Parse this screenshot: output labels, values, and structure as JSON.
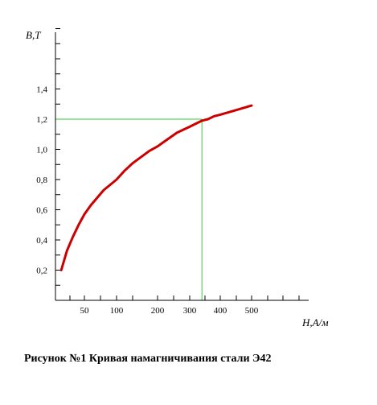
{
  "chart_data": {
    "type": "line",
    "title": "",
    "caption": "Рисунок №1 Кривая намагничивания стали Э42",
    "ylabel": "B,T",
    "xlabel": "H,A/м",
    "y_ticks": [
      "0,2",
      "0,4",
      "0,6",
      "0,8",
      "1,0",
      "1,2",
      "1,4"
    ],
    "x_ticks": [
      "50",
      "100",
      "200",
      "300",
      "400",
      "500"
    ],
    "grid": false,
    "colors": {
      "curve": "#cc0000",
      "guide": "#33cc33",
      "axis": "#000000"
    },
    "series": [
      {
        "x": [
          10,
          20,
          30,
          40,
          50,
          60,
          70,
          80,
          100,
          120,
          140,
          160,
          180,
          200,
          220,
          240,
          260,
          280,
          300,
          320,
          340,
          360,
          380,
          400,
          450,
          500
        ],
        "y": [
          0.2,
          0.33,
          0.42,
          0.5,
          0.57,
          0.63,
          0.68,
          0.73,
          0.8,
          0.86,
          0.91,
          0.95,
          0.99,
          1.02,
          1.05,
          1.08,
          1.11,
          1.13,
          1.15,
          1.17,
          1.19,
          1.2,
          1.22,
          1.23,
          1.26,
          1.29
        ]
      }
    ],
    "guide_point": {
      "x": 340,
      "y": 1.2
    }
  }
}
